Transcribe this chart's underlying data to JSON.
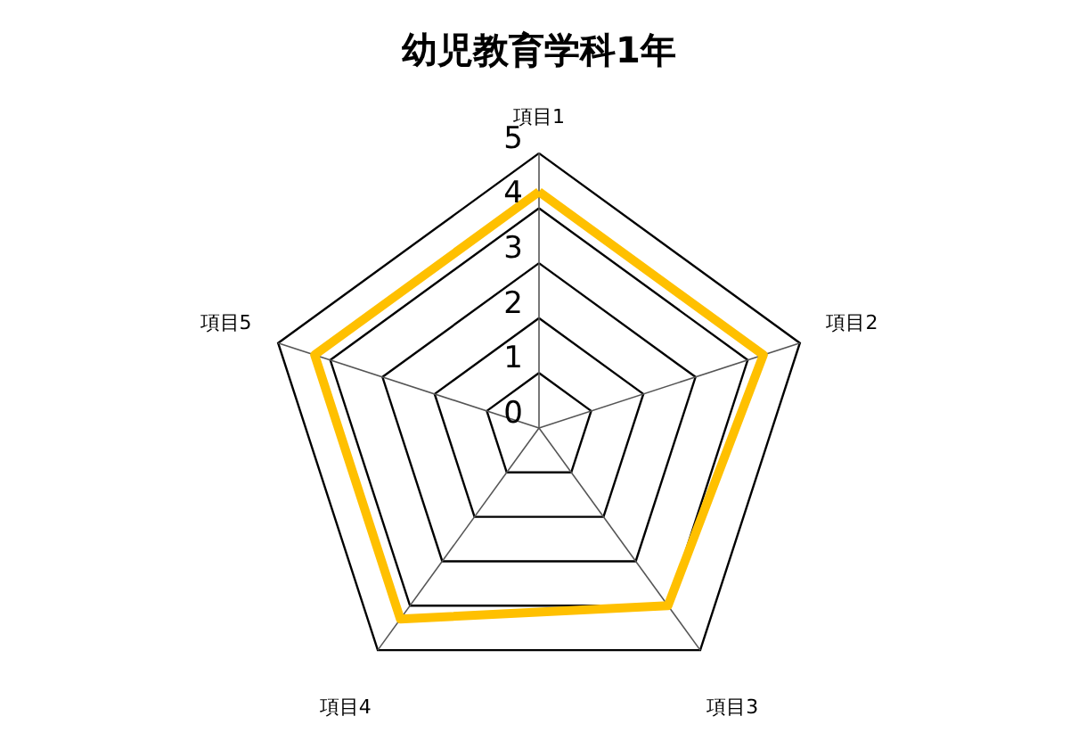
{
  "chart_data": {
    "type": "radar",
    "title": "幼児教育学科1年",
    "categories": [
      "項目1",
      "項目2",
      "項目3",
      "項目4",
      "項目5"
    ],
    "series": [
      {
        "color": "#ffc000",
        "values": [
          4.3,
          4.3,
          4.0,
          4.3,
          4.3
        ]
      }
    ],
    "ylim": [
      0,
      5
    ],
    "yticks": [
      0,
      1,
      2,
      3,
      4,
      5
    ],
    "grid": true
  }
}
